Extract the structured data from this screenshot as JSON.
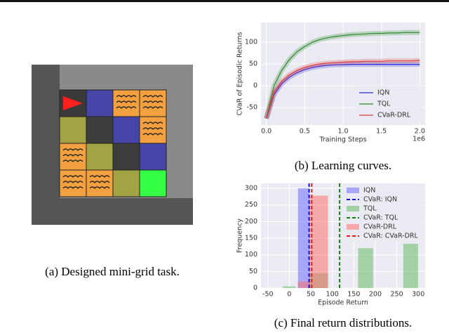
{
  "panel_a": {
    "caption": "(a) Designed mini-grid task."
  },
  "chart_data": [
    {
      "type": "line",
      "caption": "(b) Learning curves.",
      "xlabel": "Training Steps",
      "ylabel": "CVaR of Episodic Returns",
      "x_offset_label": "1e6",
      "x": [
        0,
        0.1,
        0.2,
        0.3,
        0.4,
        0.5,
        0.6,
        0.7,
        0.8,
        0.9,
        1.0,
        1.1,
        1.2,
        1.3,
        1.4,
        1.5,
        1.6,
        1.7,
        1.8,
        1.9,
        2.0
      ],
      "series": [
        {
          "name": "IQN",
          "color": "#2b2bd9",
          "values": [
            -75,
            -20,
            5,
            20,
            30,
            37,
            42,
            45,
            47,
            48,
            48.5,
            49,
            49,
            49,
            49,
            49,
            49,
            49,
            49,
            49,
            49
          ]
        },
        {
          "name": "TQL",
          "color": "#2e8b2e",
          "values": [
            -75,
            0,
            35,
            60,
            78,
            90,
            100,
            106,
            110,
            113,
            115,
            117,
            118,
            119,
            120,
            120,
            121,
            121,
            122,
            122,
            122
          ]
        },
        {
          "name": "CVaR-DRL",
          "color": "#e03c3c",
          "values": [
            -75,
            -15,
            10,
            25,
            35,
            42,
            47,
            50,
            52,
            53,
            54,
            55,
            55,
            56,
            56,
            56,
            57,
            57,
            57,
            57,
            58
          ]
        }
      ],
      "xlim": [
        -0.07,
        2.07
      ],
      "ylim": [
        -90,
        145
      ],
      "xticks": [
        {
          "value": 0,
          "label": "0.0"
        },
        0.5,
        {
          "value": 1,
          "label": "1.0"
        },
        1.5,
        {
          "value": 2,
          "label": "2.0"
        }
      ],
      "yticks": [
        -50,
        0,
        50,
        100
      ],
      "grid": true,
      "legend": "lower-right"
    },
    {
      "type": "histogram",
      "caption": "(c) Final return distributions.",
      "xlabel": "Episode Return",
      "ylabel": "Frequency",
      "series": [
        {
          "name": "IQN",
          "color": "#7070ff",
          "bins": [
            20,
            47
          ],
          "values": [
            300
          ]
        },
        {
          "name": "TQL",
          "color": "#66bb66",
          "bins": [
            -15,
            15,
            47,
            90,
            160,
            195,
            265,
            300
          ],
          "values": [
            5,
            0,
            44,
            0,
            120,
            0,
            133
          ]
        },
        {
          "name": "CVaR-DRL",
          "color": "#ff7070",
          "bins": [
            20,
            47,
            90
          ],
          "values": [
            20,
            278
          ]
        }
      ],
      "cvar_lines": [
        {
          "name": "CVaR: IQN",
          "color": "#1010cc",
          "value": 46
        },
        {
          "name": "CVaR: TQL",
          "color": "#1a7a1a",
          "value": 117
        },
        {
          "name": "CVaR: CVaR-DRL",
          "color": "#dd2020",
          "value": 52
        }
      ],
      "xlim": [
        -66,
        316
      ],
      "ylim": [
        0,
        315
      ],
      "xticks": [
        -50,
        0,
        50,
        100,
        150,
        200,
        250,
        300
      ],
      "yticks": [
        0,
        50,
        100,
        150,
        200,
        250,
        300
      ],
      "grid": true,
      "legend": "upper-right"
    }
  ]
}
